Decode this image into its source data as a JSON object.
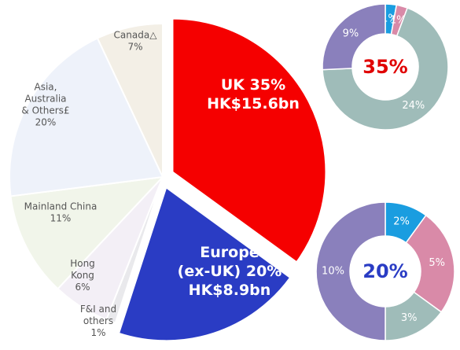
{
  "chart_data": [
    {
      "type": "pie",
      "categories": [
        [
          "UK"
        ],
        [
          "Europe",
          "(ex-UK)"
        ],
        [
          "F&I and",
          "others"
        ],
        [
          "Hong",
          "Kong"
        ],
        [
          "Mainland China"
        ],
        [
          "Asia,",
          "Australia",
          "& Others£"
        ],
        [
          "Canada△"
        ]
      ],
      "values": [
        35,
        20,
        1,
        6,
        11,
        20,
        7
      ],
      "value_labels": [
        "35%",
        "20%",
        "1%",
        "6%",
        "11%",
        "20%",
        "7%"
      ],
      "amount_labels": [
        "HK$15.6bn",
        "HK$8.9bn",
        null,
        null,
        null,
        null,
        null
      ],
      "colors": [
        "#f50000",
        "#2a3cc4",
        "#e9e9ec",
        "#f3eff6",
        "#f1f5ea",
        "#eef2fa",
        "#f3efe6"
      ],
      "exploded": [
        true,
        true,
        false,
        false,
        false,
        false,
        false
      ]
    },
    {
      "type": "donut",
      "center_label": "35%",
      "center_color": "#e00000",
      "values": [
        1,
        1,
        24,
        9
      ],
      "value_labels": [
        "1%",
        "1%",
        "24%",
        "9%"
      ],
      "colors": [
        "#1a9de0",
        "#d98aa8",
        "#9fbcb9",
        "#8a80bc"
      ]
    },
    {
      "type": "donut",
      "center_label": "20%",
      "center_color": "#2a3cc4",
      "values": [
        2,
        5,
        3,
        10
      ],
      "value_labels": [
        "2%",
        "5%",
        "3%",
        "10%"
      ],
      "colors": [
        "#1a9de0",
        "#d98aa8",
        "#9fbcb9",
        "#8a80bc"
      ]
    }
  ]
}
